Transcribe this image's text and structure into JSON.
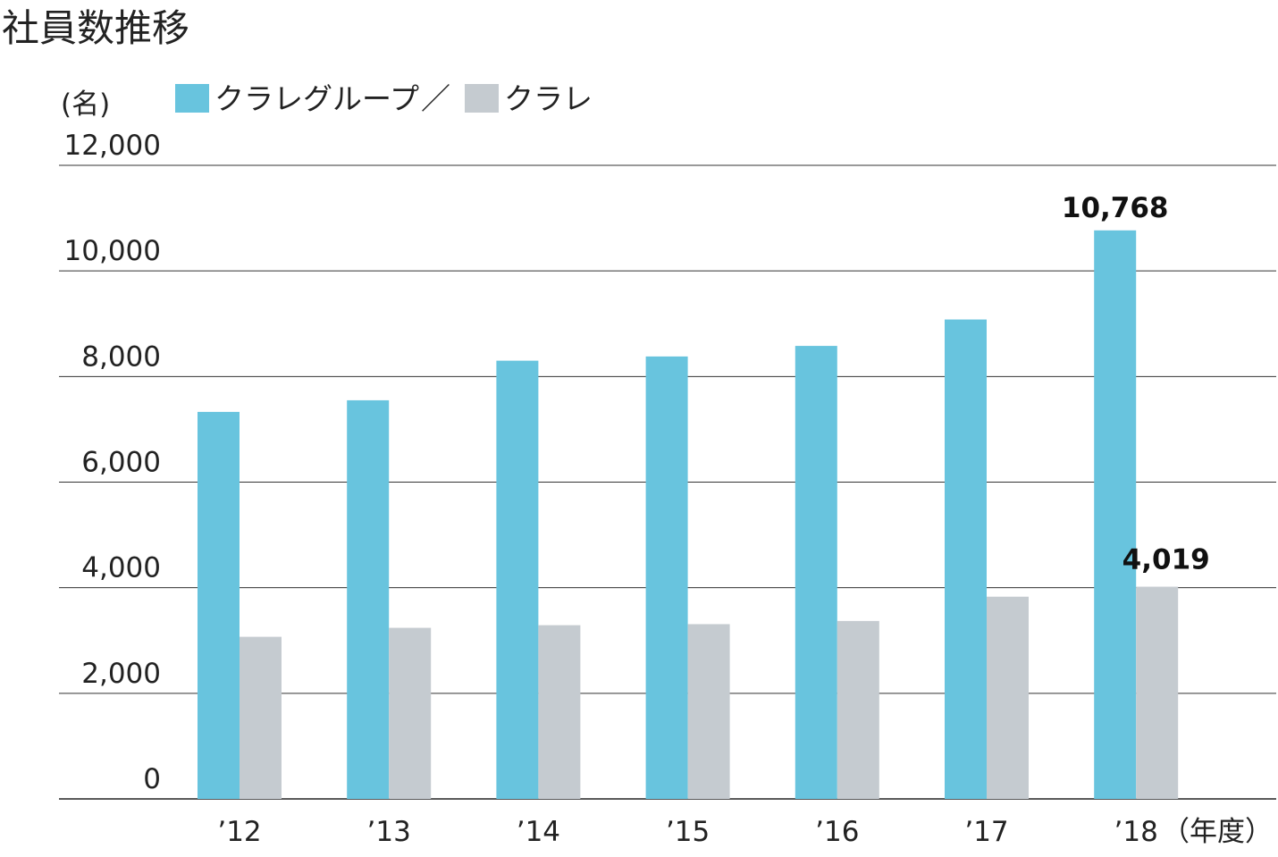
{
  "chart_data": {
    "type": "bar",
    "title": "社員数推移",
    "ylabel": "(名)",
    "xunit": "（年度）",
    "categories": [
      "’12",
      "’13",
      "’14",
      "’15",
      "’16",
      "’17",
      "’18"
    ],
    "legend_separator": "／",
    "series": [
      {
        "name": "クラレグループ",
        "color": "#68c4de",
        "values": [
          7330,
          7550,
          8300,
          8380,
          8580,
          9080,
          10768
        ]
      },
      {
        "name": "クラレ",
        "color": "#c5cbd0",
        "values": [
          3070,
          3240,
          3290,
          3310,
          3370,
          3830,
          4019
        ]
      }
    ],
    "ylim": [
      0,
      12000
    ],
    "yticks": [
      "0",
      "2,000",
      "4,000",
      "6,000",
      "8,000",
      "10,000",
      "12,000"
    ],
    "value_labels": [
      "10,768",
      "4,019"
    ],
    "grid": true,
    "legend_position": "top"
  }
}
